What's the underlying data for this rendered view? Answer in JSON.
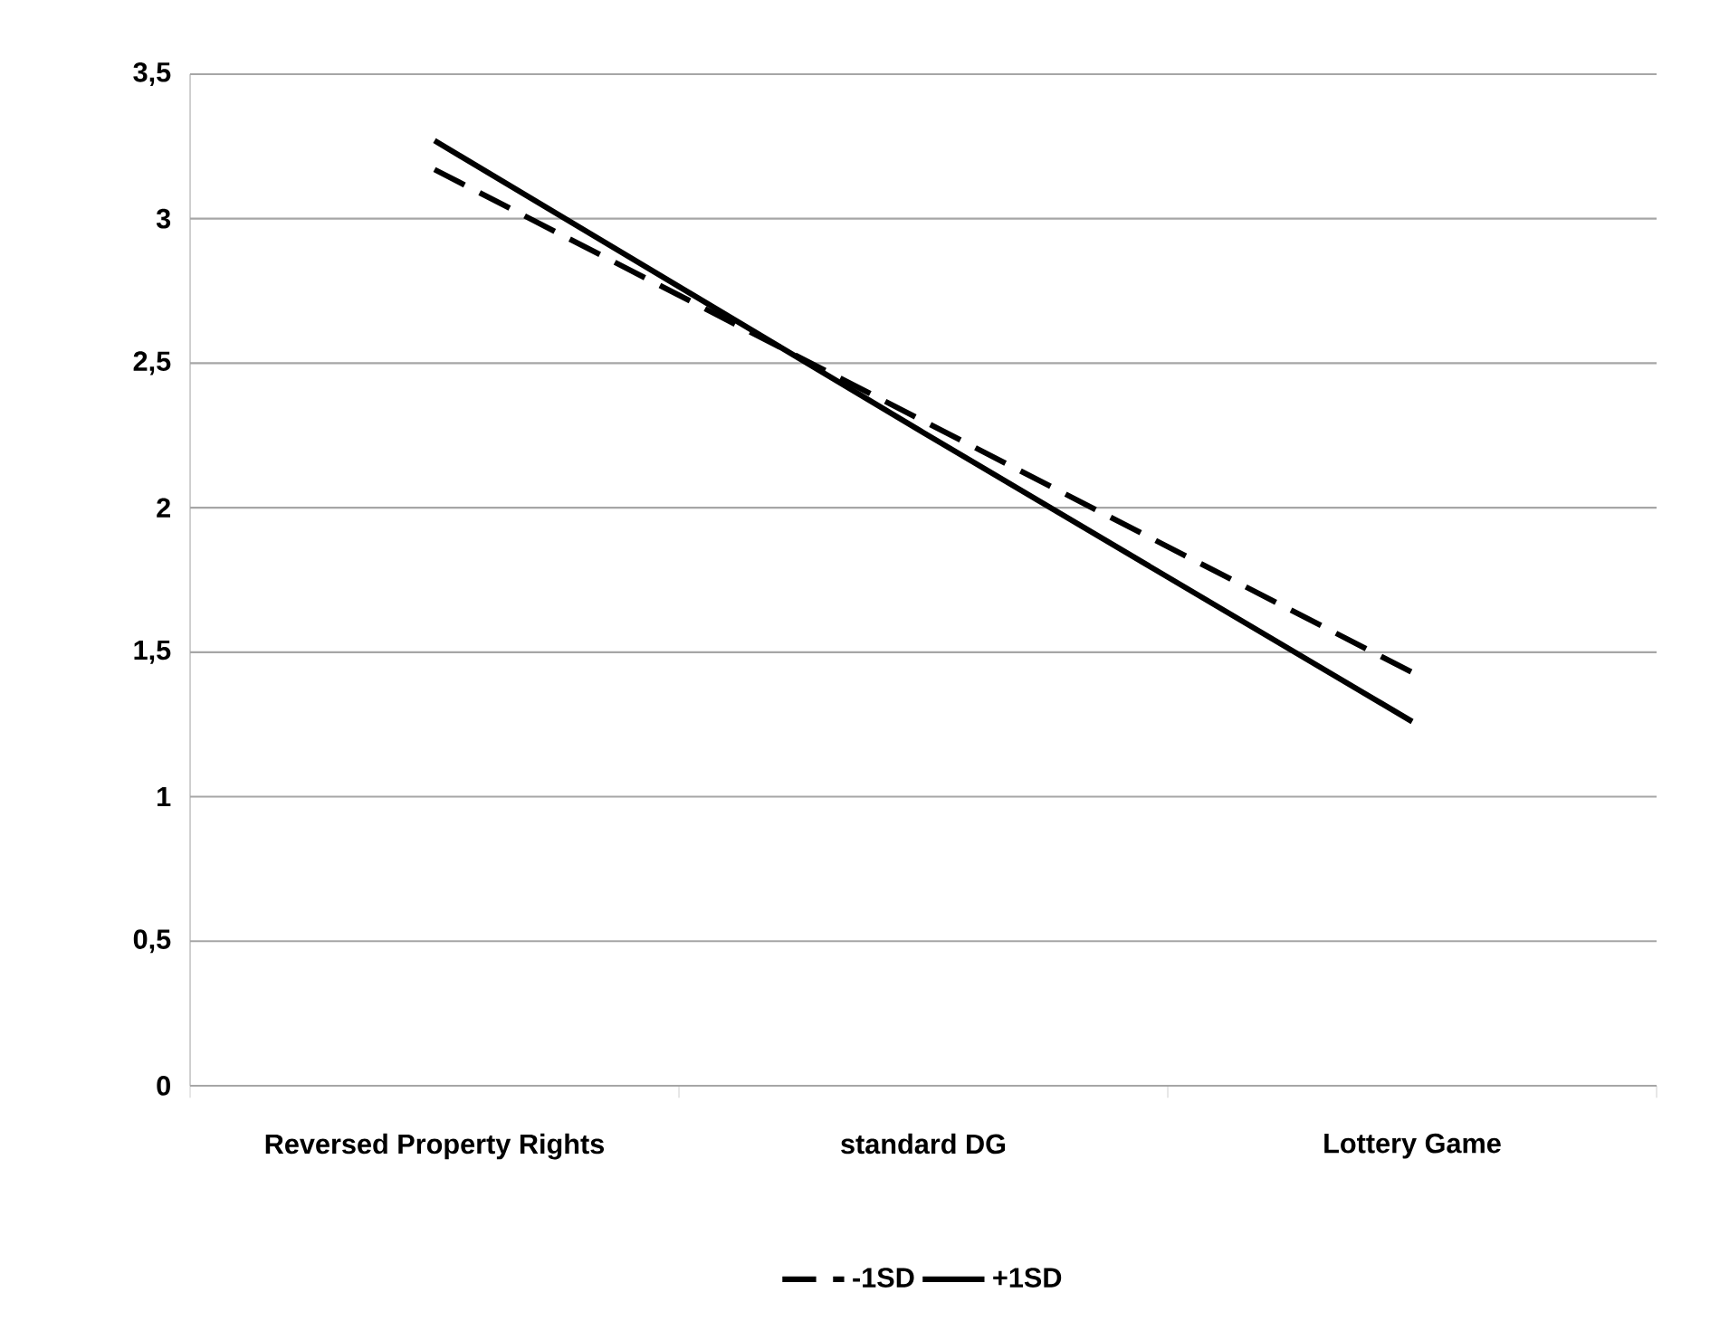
{
  "chart_data": {
    "type": "line",
    "categories": [
      "Reversed Property Rights",
      "standard DG",
      "Lottery Game"
    ],
    "series": [
      {
        "name": "-1SD",
        "color": "#000000",
        "line_style": "dashed",
        "values": [
          3.17,
          2.3,
          1.43
        ]
      },
      {
        "name": "+1SD",
        "color": "#000000",
        "line_style": "solid",
        "values": [
          3.27,
          2.26,
          1.26
        ]
      }
    ],
    "ylim": [
      0,
      3.5
    ],
    "yticks": [
      0,
      {
        "value": 0.5,
        "label": "0,5"
      },
      1,
      {
        "value": 1.5,
        "label": "1,5"
      },
      2,
      {
        "value": 2.5,
        "label": "2,5"
      },
      3,
      {
        "value": 3.5,
        "label": "3,5"
      }
    ],
    "grid": "y",
    "legend": "bottom",
    "marker": "none"
  }
}
